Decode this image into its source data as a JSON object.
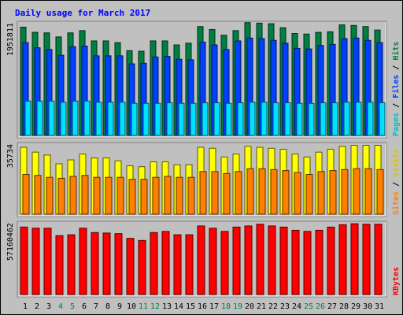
{
  "chart_data": {
    "type": "bar",
    "title": "Daily usage for March 2017",
    "categories": [
      "1",
      "2",
      "3",
      "4",
      "5",
      "6",
      "7",
      "8",
      "9",
      "10",
      "11",
      "12",
      "13",
      "14",
      "15",
      "16",
      "17",
      "18",
      "19",
      "20",
      "21",
      "22",
      "23",
      "24",
      "25",
      "26",
      "27",
      "28",
      "29",
      "30",
      "31"
    ],
    "weekend_days": [
      "4",
      "5",
      "11",
      "12",
      "18",
      "19",
      "25",
      "26"
    ],
    "panels": [
      {
        "id": "top",
        "max_label": "1951811",
        "ymax": 1951811,
        "legend": [
          "Pages",
          "Files",
          "Hits"
        ],
        "series": [
          {
            "name": "Hits",
            "color": "#008040",
            "values": [
              1890000,
              1800000,
              1790000,
              1720000,
              1790000,
              1830000,
              1650000,
              1650000,
              1620000,
              1480000,
              1470000,
              1650000,
              1650000,
              1580000,
              1610000,
              1900000,
              1850000,
              1750000,
              1830000,
              1970000,
              1960000,
              1950000,
              1880000,
              1780000,
              1770000,
              1800000,
              1810000,
              1930000,
              1920000,
              1900000,
              1840000
            ]
          },
          {
            "name": "Files",
            "color": "#0040ff",
            "values": [
              1620000,
              1530000,
              1500000,
              1400000,
              1550000,
              1560000,
              1390000,
              1390000,
              1390000,
              1250000,
              1260000,
              1370000,
              1380000,
              1330000,
              1320000,
              1630000,
              1580000,
              1500000,
              1650000,
              1700000,
              1690000,
              1660000,
              1610000,
              1520000,
              1510000,
              1570000,
              1590000,
              1690000,
              1700000,
              1660000,
              1620000
            ]
          },
          {
            "name": "Pages",
            "color": "#00e0ff",
            "values": [
              600000,
              600000,
              600000,
              580000,
              600000,
              600000,
              580000,
              580000,
              580000,
              560000,
              560000,
              560000,
              570000,
              560000,
              560000,
              570000,
              570000,
              560000,
              570000,
              580000,
              580000,
              570000,
              570000,
              560000,
              560000,
              570000,
              570000,
              580000,
              580000,
              580000,
              570000
            ]
          }
        ]
      },
      {
        "id": "mid",
        "max_label": "35734",
        "ymax": 35734,
        "legend": [
          "Sites",
          "Visits"
        ],
        "series": [
          {
            "name": "Visits",
            "color": "#ffff00",
            "values": [
              34500,
              32000,
              30500,
              26000,
              28000,
              31000,
              29000,
              29000,
              27500,
              25000,
              24500,
              27000,
              27000,
              25500,
              25500,
              34500,
              34000,
              29500,
              31000,
              35000,
              34500,
              34000,
              33500,
              31000,
              29500,
              32000,
              33500,
              35000,
              35500,
              35500,
              35500
            ]
          },
          {
            "name": "Sites",
            "color": "#ff8000",
            "values": [
              20500,
              20000,
              19000,
              18500,
              19500,
              20000,
              19000,
              19000,
              19000,
              18000,
              18000,
              19000,
              19500,
              19000,
              19000,
              22000,
              22000,
              21000,
              22000,
              23500,
              23500,
              23000,
              22500,
              21500,
              20500,
              22000,
              22500,
              23000,
              23500,
              23500,
              23000
            ]
          }
        ]
      },
      {
        "id": "bot",
        "max_label": "57160462",
        "ymax": 57160462,
        "legend": [
          "KBytes"
        ],
        "series": [
          {
            "name": "KBytes",
            "color": "#ff0000",
            "values": [
              54400000,
              53500000,
              53500000,
              47500000,
              48200000,
              53500000,
              50000000,
              49600000,
              49100000,
              45300000,
              43600000,
              50000000,
              50900000,
              48200000,
              48200000,
              55300000,
              53500000,
              50900000,
              54400000,
              55300000,
              56700000,
              55300000,
              54400000,
              51800000,
              50900000,
              51800000,
              54400000,
              56300000,
              57100000,
              56700000,
              56700000
            ]
          }
        ]
      }
    ]
  }
}
